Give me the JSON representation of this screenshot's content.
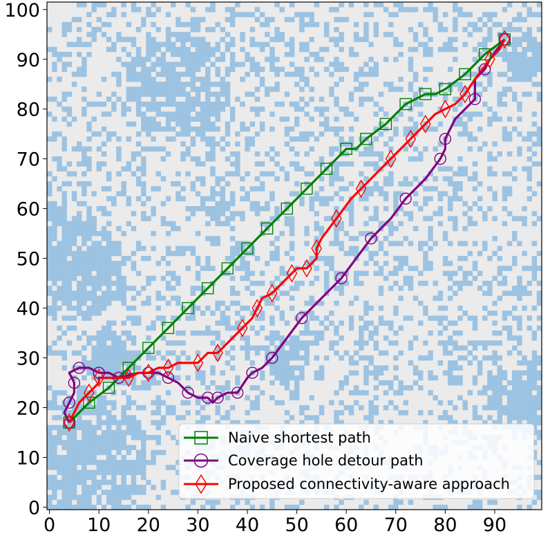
{
  "chart_data": {
    "type": "line",
    "title": "",
    "xlabel": "",
    "ylabel": "",
    "xlim": [
      -0.5,
      99.5
    ],
    "ylim": [
      -0.5,
      101.5
    ],
    "xticks": [
      "0",
      "10",
      "20",
      "30",
      "40",
      "50",
      "60",
      "70",
      "80",
      "90"
    ],
    "yticks": [
      "0",
      "10",
      "20",
      "30",
      "40",
      "50",
      "60",
      "70",
      "80",
      "90",
      "100"
    ],
    "grid": false,
    "legend_position": "lower-right",
    "background": {
      "type": "heatmap",
      "description_colors": {
        "covered": "#9dc3e2",
        "uncovered": "#ebebeb"
      }
    },
    "series": [
      {
        "name": "Naive shortest path",
        "color": "#008000",
        "marker": "square",
        "points": [
          [
            4,
            17
          ],
          [
            8,
            21
          ],
          [
            12,
            24
          ],
          [
            16,
            28
          ],
          [
            20,
            32
          ],
          [
            24,
            36
          ],
          [
            28,
            40
          ],
          [
            32,
            44
          ],
          [
            36,
            48
          ],
          [
            40,
            52
          ],
          [
            44,
            56
          ],
          [
            48,
            60
          ],
          [
            52,
            64
          ],
          [
            56,
            68
          ],
          [
            60,
            72
          ],
          [
            62,
            72
          ],
          [
            64,
            74
          ],
          [
            68,
            77
          ],
          [
            72,
            81
          ],
          [
            74,
            82
          ],
          [
            76,
            83
          ],
          [
            78,
            83
          ],
          [
            80,
            84
          ],
          [
            84,
            87
          ],
          [
            88,
            91
          ],
          [
            92,
            94
          ]
        ]
      },
      {
        "name": "Coverage hole detour path",
        "color": "#800080",
        "marker": "circle",
        "points": [
          [
            4,
            17
          ],
          [
            3,
            19
          ],
          [
            4,
            21
          ],
          [
            5,
            23
          ],
          [
            5,
            25
          ],
          [
            4,
            27
          ],
          [
            6,
            28
          ],
          [
            8,
            28
          ],
          [
            10,
            27
          ],
          [
            12,
            27
          ],
          [
            14,
            26
          ],
          [
            18,
            27
          ],
          [
            20,
            27
          ],
          [
            22,
            27
          ],
          [
            24,
            26
          ],
          [
            26,
            25
          ],
          [
            28,
            23
          ],
          [
            30,
            22
          ],
          [
            32,
            22
          ],
          [
            33,
            21
          ],
          [
            34,
            22
          ],
          [
            36,
            23
          ],
          [
            38,
            23
          ],
          [
            40,
            26
          ],
          [
            41,
            27
          ],
          [
            43,
            28
          ],
          [
            45,
            30
          ],
          [
            48,
            34
          ],
          [
            51,
            38
          ],
          [
            55,
            42
          ],
          [
            59,
            46
          ],
          [
            62,
            50
          ],
          [
            65,
            54
          ],
          [
            69,
            58
          ],
          [
            72,
            62
          ],
          [
            76,
            66
          ],
          [
            79,
            70
          ],
          [
            80,
            72
          ],
          [
            80,
            74
          ],
          [
            82,
            78
          ],
          [
            86,
            82
          ],
          [
            86,
            86
          ],
          [
            88,
            88
          ],
          [
            89,
            90
          ],
          [
            92,
            94
          ]
        ]
      },
      {
        "name": "Proposed connectivity-aware approach",
        "color": "#ff0000",
        "marker": "diamond",
        "points": [
          [
            4,
            17
          ],
          [
            6,
            21
          ],
          [
            8,
            23
          ],
          [
            10,
            25
          ],
          [
            10,
            26
          ],
          [
            14,
            26
          ],
          [
            16,
            26
          ],
          [
            18,
            27
          ],
          [
            20,
            27
          ],
          [
            22,
            28
          ],
          [
            24,
            28
          ],
          [
            26,
            29
          ],
          [
            30,
            29
          ],
          [
            32,
            31
          ],
          [
            34,
            31
          ],
          [
            37,
            34
          ],
          [
            39,
            36
          ],
          [
            41,
            38
          ],
          [
            42,
            40
          ],
          [
            43,
            42
          ],
          [
            45,
            43
          ],
          [
            47,
            45
          ],
          [
            49,
            47
          ],
          [
            50,
            48
          ],
          [
            52,
            48
          ],
          [
            54,
            50
          ],
          [
            54,
            52
          ],
          [
            55,
            54
          ],
          [
            58,
            58
          ],
          [
            61,
            62
          ],
          [
            63,
            64
          ],
          [
            65,
            66
          ],
          [
            69,
            70
          ],
          [
            71,
            72
          ],
          [
            73,
            74
          ],
          [
            74,
            75
          ],
          [
            76,
            77
          ],
          [
            78,
            79
          ],
          [
            80,
            80
          ],
          [
            82,
            81
          ],
          [
            84,
            83
          ],
          [
            86,
            86
          ],
          [
            89,
            90
          ],
          [
            91,
            92
          ],
          [
            92,
            94
          ]
        ]
      }
    ]
  }
}
